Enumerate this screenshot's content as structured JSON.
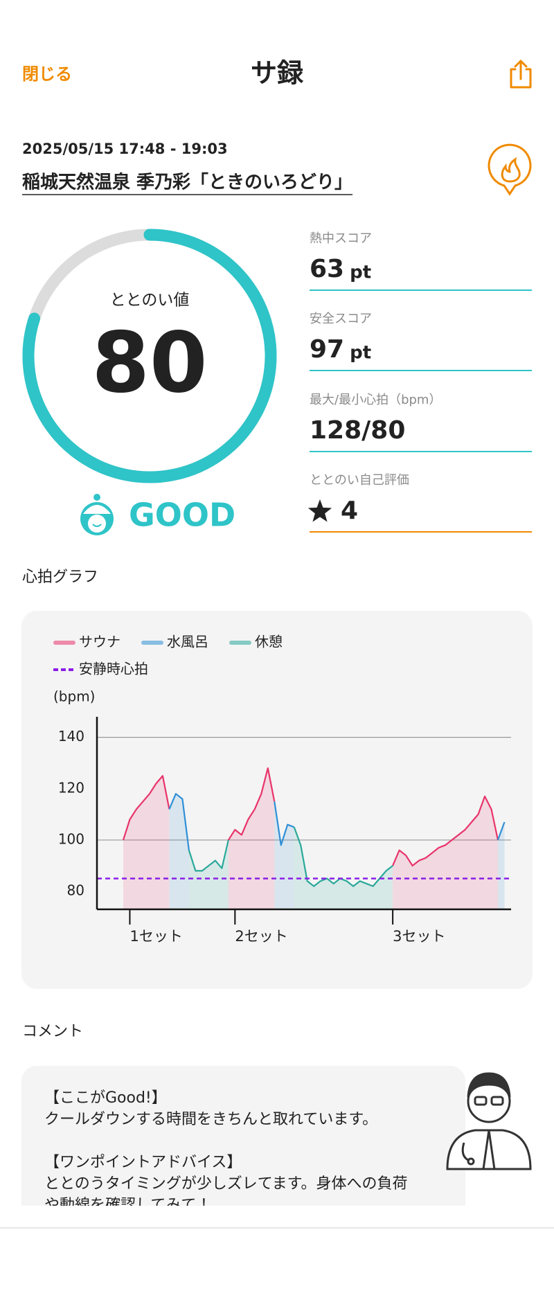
{
  "header": {
    "close": "閉じる",
    "title": "サ録"
  },
  "session": {
    "datetime": "2025/05/15 17:48 - 19:03",
    "venue": "稲城天然温泉 季乃彩「ときのいろどり」"
  },
  "gauge": {
    "label": "ととのい値",
    "value": 80,
    "lim": [
      0,
      100
    ],
    "rating": "GOOD",
    "color": "#2ec4c8"
  },
  "metrics": [
    {
      "label": "熱中スコア",
      "value": 63,
      "unit": "pt"
    },
    {
      "label": "安全スコア",
      "value": 97,
      "unit": "pt"
    },
    {
      "label": "最大/最小心拍（bpm）",
      "value": "128/80"
    },
    {
      "label": "ととのい自己評価",
      "value": 4
    }
  ],
  "chart_section": "心拍グラフ",
  "chart_data": {
    "type": "line",
    "ylabel": "(bpm)",
    "x": [
      0,
      1,
      2,
      3,
      4,
      5,
      6,
      7,
      8,
      9,
      10,
      11,
      12,
      13,
      14,
      15,
      16,
      17,
      18,
      19,
      20,
      21,
      22,
      23,
      24,
      25,
      26,
      27,
      28,
      29,
      30,
      31,
      32,
      33,
      34,
      35,
      36,
      37,
      38,
      39,
      40,
      41,
      42,
      43,
      44,
      45,
      46,
      47,
      48,
      49,
      50,
      51,
      52,
      53,
      54,
      55,
      56,
      57,
      58
    ],
    "xlim": [
      -4,
      59
    ],
    "xticks": [
      {
        "value": 1,
        "label": "1セット"
      },
      {
        "value": 17,
        "label": "2セット"
      },
      {
        "value": 41,
        "label": "3セット"
      }
    ],
    "ylim": [
      73,
      148
    ],
    "yticks": [
      80,
      100,
      120,
      140
    ],
    "grid_at": [
      100,
      140
    ],
    "series": [
      {
        "name": "サウナ",
        "color": "#e8336b",
        "values": [
          100,
          108,
          112,
          115,
          118,
          122,
          125,
          112,
          null,
          null,
          null,
          null,
          null,
          null,
          null,
          null,
          100,
          104,
          102,
          108,
          112,
          118,
          128,
          115,
          null,
          null,
          null,
          null,
          null,
          null,
          null,
          null,
          null,
          null,
          null,
          null,
          null,
          null,
          null,
          null,
          null,
          90,
          96,
          94,
          90,
          92,
          93,
          95,
          97,
          98,
          100,
          102,
          104,
          107,
          110,
          117,
          112,
          100,
          null
        ]
      },
      {
        "name": "水風呂",
        "color": "#2f8fd6",
        "values": [
          null,
          null,
          null,
          null,
          null,
          null,
          null,
          112,
          118,
          116,
          96,
          null,
          null,
          null,
          null,
          null,
          null,
          null,
          null,
          null,
          null,
          null,
          null,
          115,
          98,
          106,
          105,
          null,
          null,
          null,
          null,
          null,
          null,
          null,
          null,
          null,
          null,
          null,
          null,
          null,
          null,
          null,
          null,
          null,
          null,
          null,
          null,
          null,
          null,
          null,
          null,
          null,
          null,
          null,
          null,
          null,
          null,
          100,
          107
        ]
      },
      {
        "name": "休憩",
        "color": "#2aa89a",
        "values": [
          null,
          null,
          null,
          null,
          null,
          null,
          null,
          null,
          null,
          null,
          96,
          88,
          88,
          90,
          92,
          89,
          100,
          null,
          null,
          null,
          null,
          null,
          null,
          null,
          null,
          null,
          105,
          98,
          84,
          82,
          84,
          85,
          83,
          85,
          84,
          82,
          84,
          83,
          82,
          85,
          88,
          90,
          null,
          null,
          null,
          null,
          null,
          null,
          null,
          null,
          null,
          null,
          null,
          null,
          null,
          null,
          null,
          null,
          null
        ]
      }
    ],
    "reference_lines": [
      {
        "name": "安静時心拍",
        "value": 85,
        "color": "#8a1ee6"
      }
    ]
  },
  "comment_section": "コメント",
  "comment": {
    "lines": [
      "【ここがGood!】",
      "クールダウンする時間をきちんと取れています。",
      "",
      "【ワンポイントアドバイス】",
      "ととのうタイミングが少しズレてます。身体への負荷",
      "や動線を確認してみて！"
    ]
  }
}
